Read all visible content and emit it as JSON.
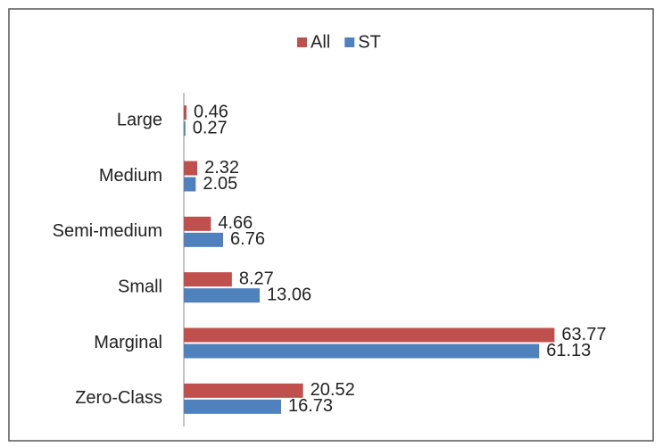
{
  "chart_data": {
    "type": "bar",
    "orientation": "horizontal",
    "categories": [
      "Large",
      "Medium",
      "Semi-medium",
      "Small",
      "Marginal",
      "Zero-Class"
    ],
    "series": [
      {
        "name": "All",
        "color": "#c0504d",
        "values": [
          0.46,
          2.32,
          4.66,
          8.27,
          63.77,
          20.52
        ]
      },
      {
        "name": "ST",
        "color": "#4f81bd",
        "values": [
          0.27,
          2.05,
          6.76,
          13.06,
          61.13,
          16.73
        ]
      }
    ],
    "xlim": [
      0,
      70
    ],
    "legend": "top"
  }
}
